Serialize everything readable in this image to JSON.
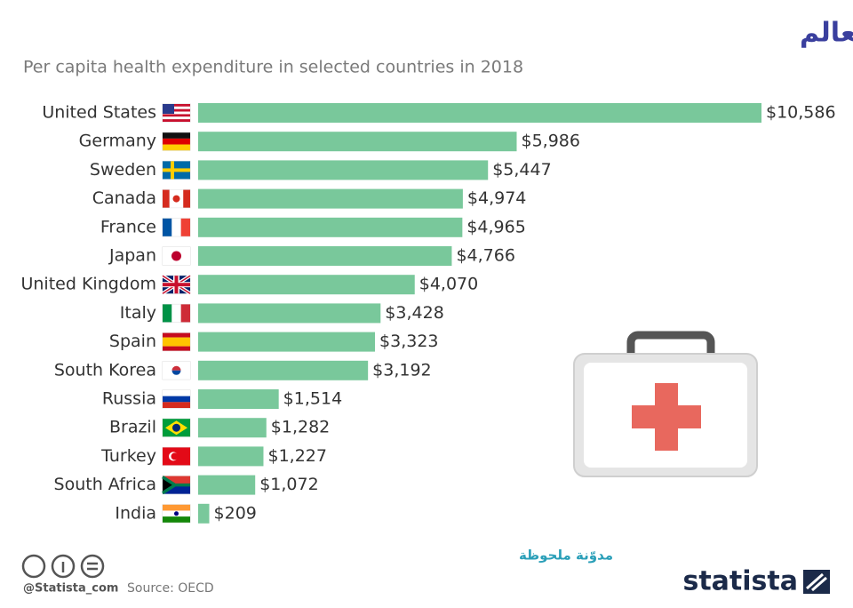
{
  "chart_data": {
    "type": "bar",
    "title": "الولايات المتحدة تمتلك أغلى نظام رعاية صحية في العالم",
    "subtitle": "Per capita health expenditure in selected countries in 2018",
    "categories": [
      "United States",
      "Germany",
      "Sweden",
      "Canada",
      "France",
      "Japan",
      "United Kingdom",
      "Italy",
      "Spain",
      "South Korea",
      "Russia",
      "Brazil",
      "Turkey",
      "South Africa",
      "India"
    ],
    "values": [
      10586,
      5986,
      5447,
      4974,
      4965,
      4766,
      4070,
      3428,
      3323,
      3192,
      1514,
      1282,
      1227,
      1072,
      209
    ],
    "value_labels": [
      "$10,586",
      "$5,986",
      "$5,447",
      "$4,974",
      "$4,965",
      "$4,766",
      "$4,070",
      "$3,428",
      "$3,323",
      "$3,192",
      "$1,514",
      "$1,282",
      "$1,227",
      "$1,072",
      "$209"
    ],
    "color": "#79c89b"
  },
  "footer": {
    "watermark": "مدوّنة ملحوظة",
    "handle": "@Statista_com",
    "source": "Source: OECD",
    "brand": "statista"
  }
}
